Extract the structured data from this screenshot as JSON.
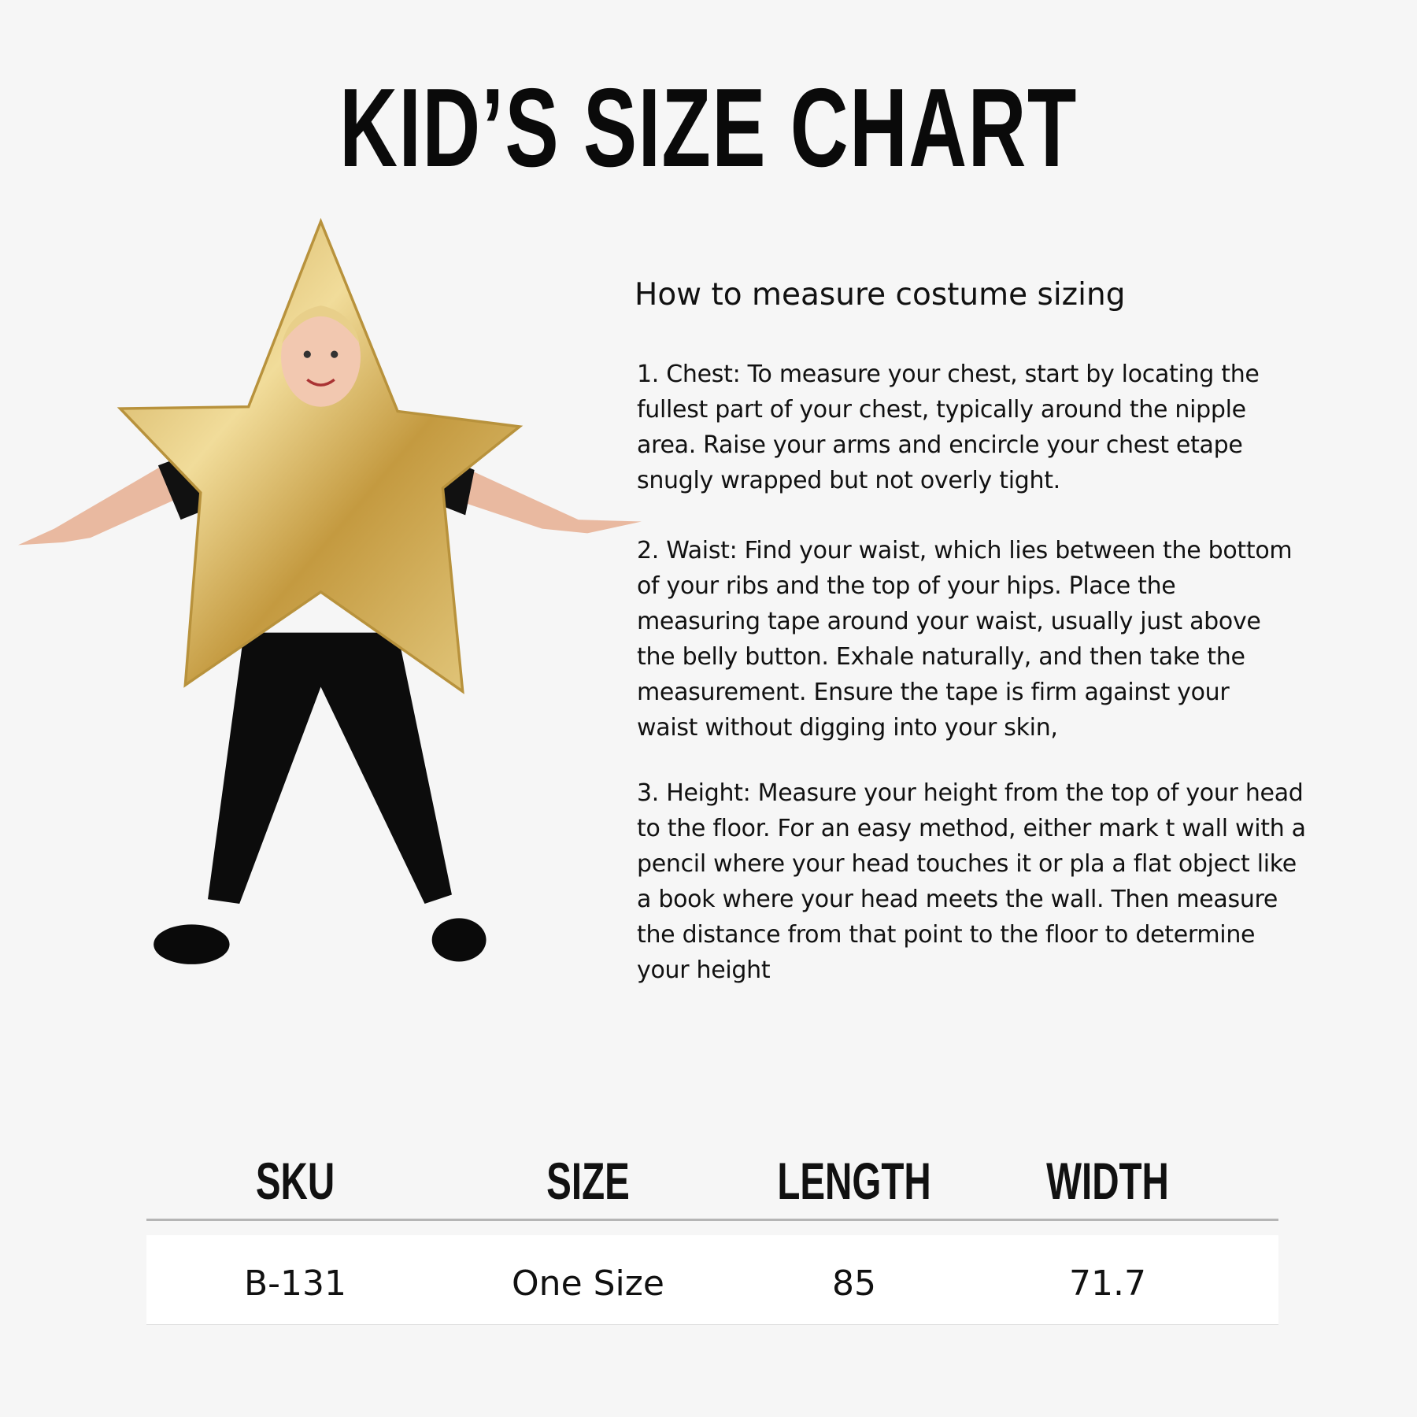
{
  "title": "KID’S SIZE CHART",
  "instructions": {
    "heading": "How to measure costume sizing",
    "paragraphs": [
      {
        "lines": [
          "1. Chest: To measure your chest, start by locating the",
          "fullest part of your chest, typically around the nipple",
          "area. Raise your arms and encircle your chest etape",
          "snugly wrapped but not overly tight."
        ]
      },
      {
        "lines": [
          "2. Waist: Find your waist, which lies between the bottom",
          "of your ribs and the top of your hips. Place the",
          "measuring tape around your waist, usually just above",
          "the belly button. Exhale naturally, and then take the",
          "measurement. Ensure the tape is firm against your",
          "waist without digging into your skin,"
        ]
      },
      {
        "lines": [
          "3. Height: Measure your height from the top of your head",
          "to the floor. For an easy method, either mark t wall with a",
          "pencil where your head touches it or pla a flat object like",
          "a book where your head meets the wall. Then measure",
          "the distance from that point to the floor to determine",
          "your height"
        ]
      }
    ]
  },
  "table": {
    "headers": [
      "SKU",
      "SIZE",
      "LENGTH",
      "WIDTH"
    ],
    "rows": [
      [
        "B-131",
        "One Size",
        "85",
        "71.7"
      ]
    ]
  },
  "colors": {
    "background": "#f6f6f6",
    "star": "#d4b25a",
    "rule": "#b5b5b5"
  }
}
